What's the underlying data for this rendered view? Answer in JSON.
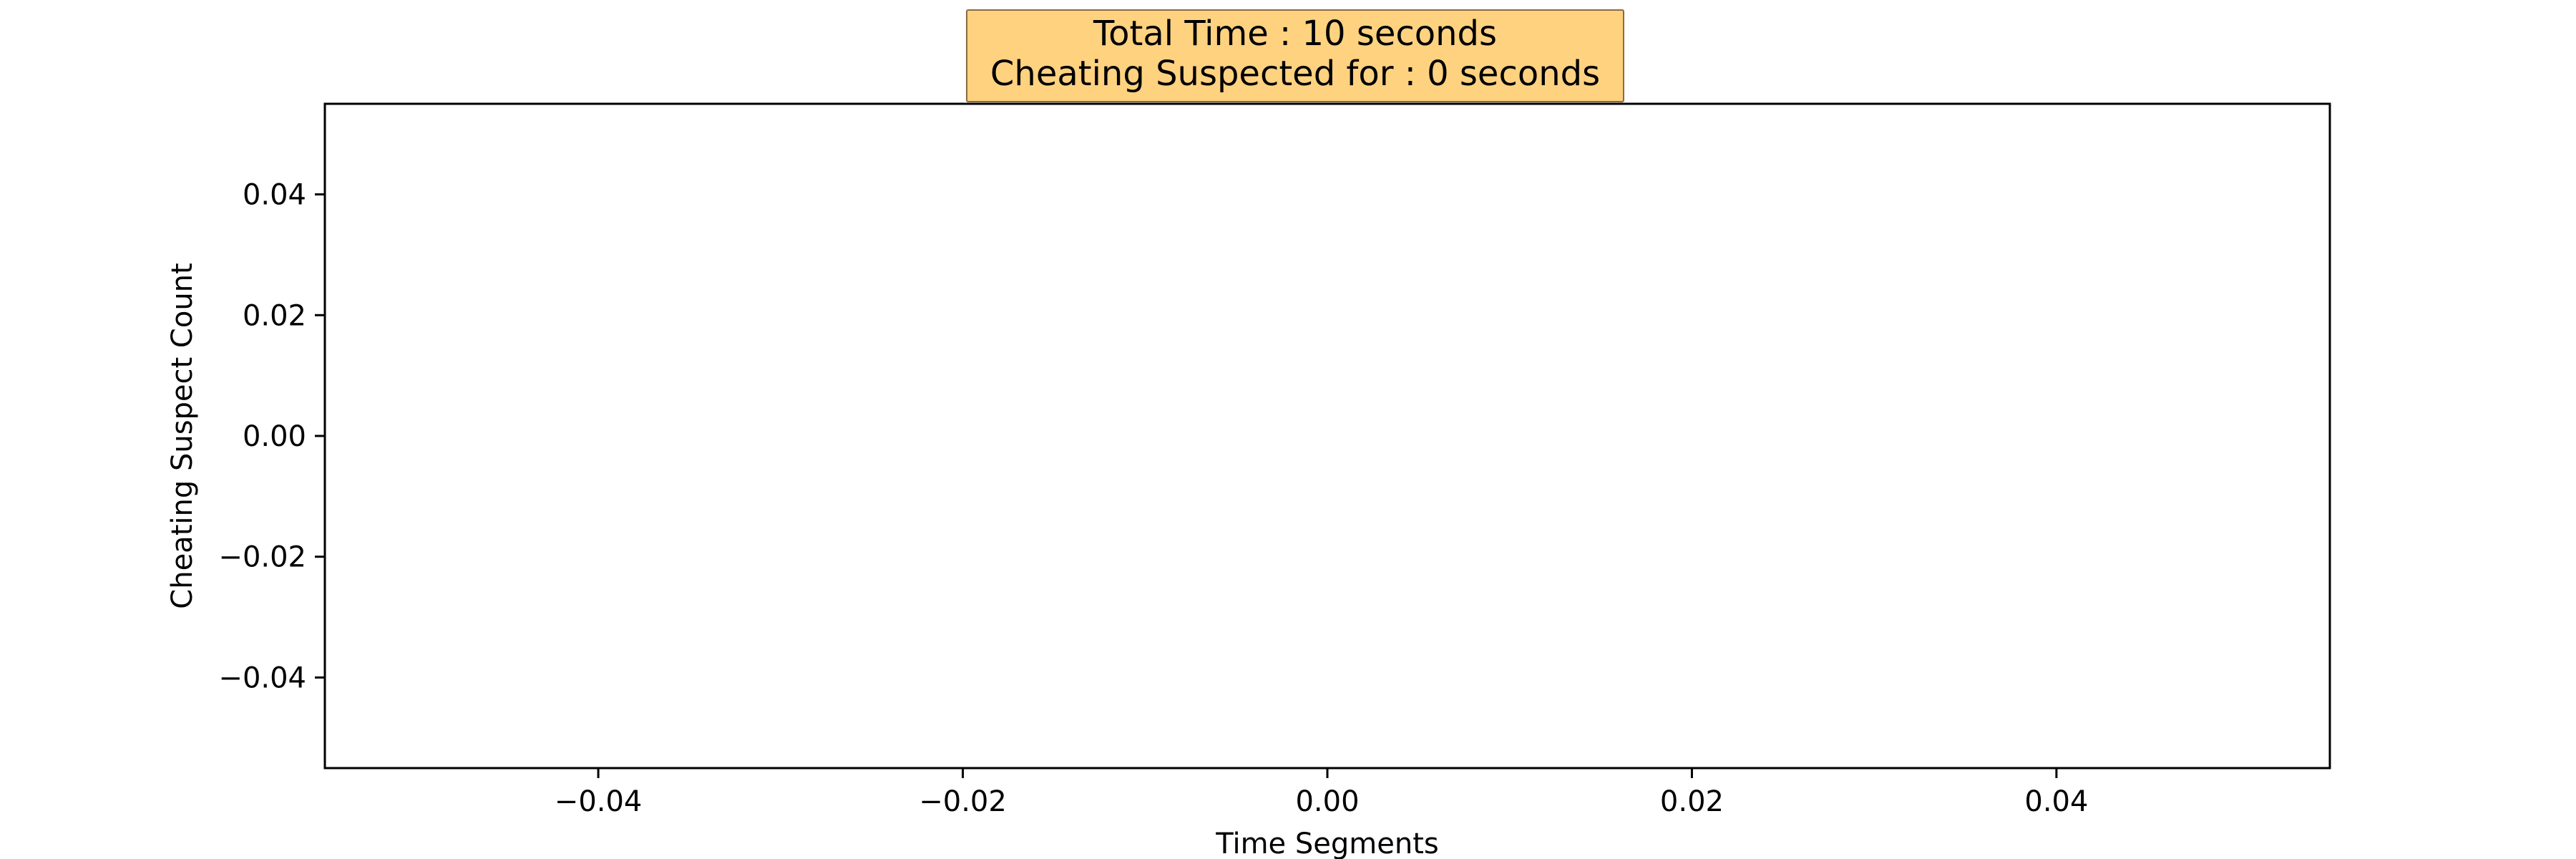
{
  "chart_data": {
    "type": "line",
    "title_lines": [
      "Total Time : 10 seconds",
      "Cheating Suspected for : 0 seconds"
    ],
    "xlabel": "Time Segments",
    "ylabel": "Cheating Suspect Count",
    "xlim": [
      -0.055,
      0.055
    ],
    "ylim": [
      -0.055,
      0.055
    ],
    "x_ticks": [
      -0.04,
      -0.02,
      0.0,
      0.02,
      0.04
    ],
    "x_tick_labels": [
      "−0.04",
      "−0.02",
      "0.00",
      "0.02",
      "0.04"
    ],
    "y_ticks": [
      0.04,
      0.02,
      0.0,
      -0.02,
      -0.04
    ],
    "y_tick_labels": [
      "0.04",
      "0.02",
      "0.00",
      "−0.02",
      "−0.04"
    ],
    "series": [],
    "grid": false,
    "title_box_color": "#ffd280",
    "title_box_border": "#8b6a3e"
  }
}
